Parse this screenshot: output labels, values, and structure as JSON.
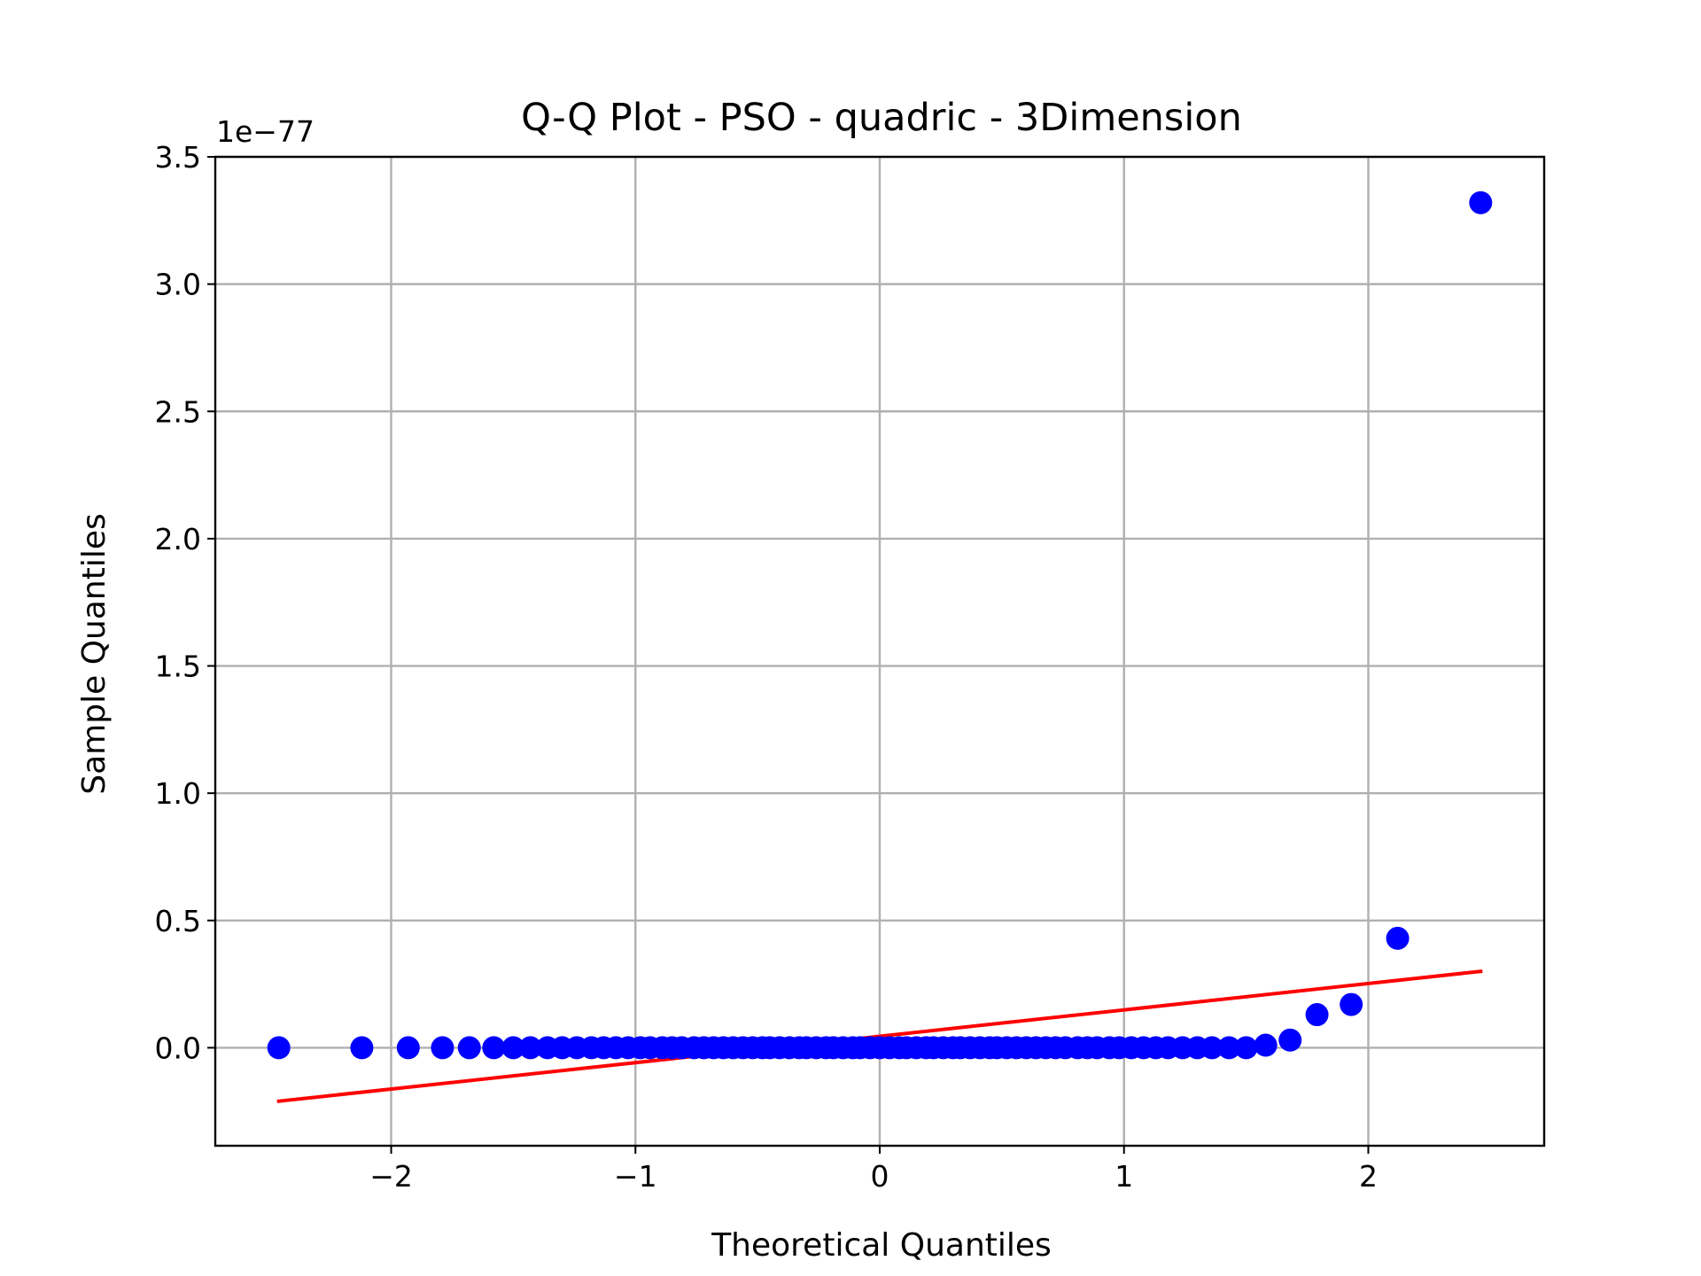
{
  "chart_data": {
    "type": "scatter",
    "title": "Q-Q Plot - PSO - quadric - 3Dimension",
    "xlabel": "Theoretical Quantiles",
    "ylabel": "Sample Quantiles",
    "y_offset_label": "1e−77",
    "xlim": [
      -2.72,
      2.72
    ],
    "ylim": [
      -0.385,
      3.5
    ],
    "x_ticks": [
      -2,
      -1,
      0,
      1,
      2
    ],
    "x_tick_labels": [
      "−2",
      "−1",
      "0",
      "1",
      "2"
    ],
    "y_ticks": [
      0.0,
      0.5,
      1.0,
      1.5,
      2.0,
      2.5,
      3.0,
      3.5
    ],
    "y_tick_labels": [
      "0.0",
      "0.5",
      "1.0",
      "1.5",
      "2.0",
      "2.5",
      "3.0",
      "3.5"
    ],
    "grid": true,
    "marker_color": "#0000ff",
    "line_color": "#ff0000",
    "series": [
      {
        "kind": "points",
        "x": [
          -2.46,
          -2.12,
          -1.93,
          -1.79,
          -1.68,
          -1.58,
          -1.5,
          -1.43,
          -1.36,
          -1.3,
          -1.24,
          -1.18,
          -1.13,
          -1.08,
          -1.03,
          -0.98,
          -0.94,
          -0.89,
          -0.85,
          -0.81,
          -0.76,
          -0.72,
          -0.68,
          -0.64,
          -0.6,
          -0.56,
          -0.52,
          -0.48,
          -0.45,
          -0.41,
          -0.37,
          -0.33,
          -0.3,
          -0.26,
          -0.22,
          -0.19,
          -0.15,
          -0.11,
          -0.08,
          -0.04,
          0.0,
          0.04,
          0.08,
          0.11,
          0.15,
          0.19,
          0.22,
          0.26,
          0.3,
          0.33,
          0.37,
          0.41,
          0.45,
          0.48,
          0.52,
          0.56,
          0.6,
          0.64,
          0.68,
          0.72,
          0.76,
          0.81,
          0.85,
          0.89,
          0.94,
          0.98,
          1.03,
          1.08,
          1.13,
          1.18,
          1.24,
          1.3,
          1.36,
          1.43,
          1.5,
          1.58,
          1.68,
          1.79,
          1.93,
          2.12,
          2.46
        ],
        "y": [
          0.0,
          0.0,
          0.0,
          0.0,
          0.0,
          0.0,
          0.0,
          0.0,
          0.0,
          0.0,
          0.0,
          0.0,
          0.0,
          0.0,
          0.0,
          0.0,
          0.0,
          0.0,
          0.0,
          0.0,
          0.0,
          0.0,
          0.0,
          0.0,
          0.0,
          0.0,
          0.0,
          0.0,
          0.0,
          0.0,
          0.0,
          0.0,
          0.0,
          0.0,
          0.0,
          0.0,
          0.0,
          0.0,
          0.0,
          0.0,
          0.0,
          0.0,
          0.0,
          0.0,
          0.0,
          0.0,
          0.0,
          0.0,
          0.0,
          0.0,
          0.0,
          0.0,
          0.0,
          0.0,
          0.0,
          0.0,
          0.0,
          0.0,
          0.0,
          0.0,
          0.0,
          0.0,
          0.0,
          0.0,
          0.0,
          0.0,
          0.0,
          0.0,
          0.0,
          0.0,
          0.0,
          0.0,
          0.0,
          0.0,
          0.0,
          0.01,
          0.03,
          0.13,
          0.17,
          0.43,
          3.32
        ]
      },
      {
        "kind": "line",
        "x": [
          -2.46,
          2.46
        ],
        "y": [
          -0.21,
          0.3
        ]
      }
    ]
  }
}
